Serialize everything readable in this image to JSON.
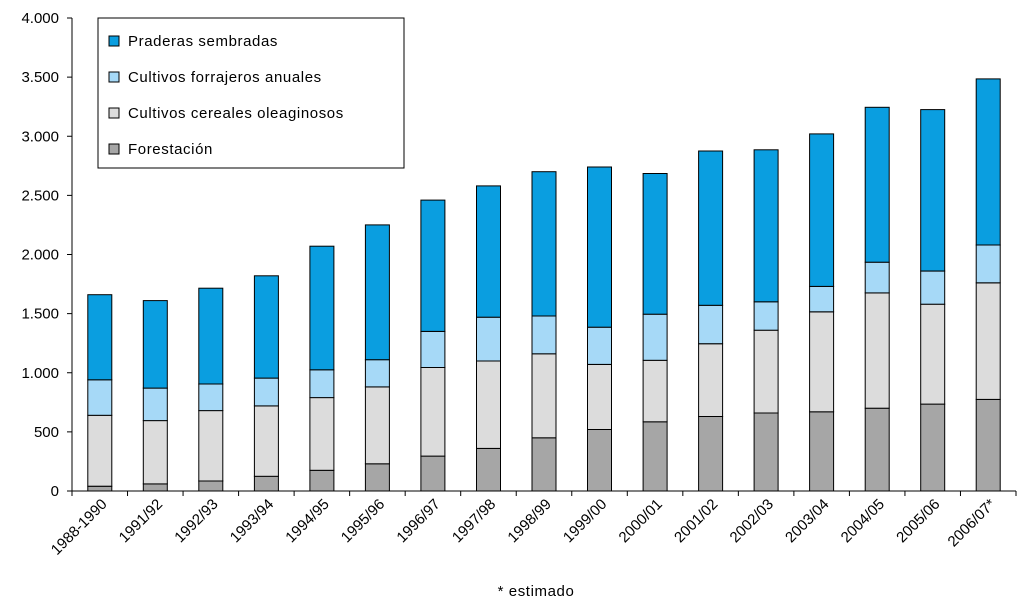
{
  "chart_data": {
    "type": "bar",
    "stacked": true,
    "title": "",
    "xlabel": "",
    "ylabel": "",
    "ylim": [
      0,
      4000
    ],
    "yticks": [
      0,
      500,
      1000,
      1500,
      2000,
      2500,
      3000,
      3500,
      4000
    ],
    "ytick_labels": [
      "0",
      "500",
      "1.000",
      "1.500",
      "2.000",
      "2.500",
      "3.000",
      "3.500",
      "4.000"
    ],
    "grid": false,
    "legend_position": "top-left",
    "categories": [
      "1988-1990",
      "1991/92",
      "1992/93",
      "1993/94",
      "1994/95",
      "1995/96",
      "1996/97",
      "1997/98",
      "1998/99",
      "1999/00",
      "2000/01",
      "2001/02",
      "2002/03",
      "2003/04",
      "2004/05",
      "2005/06",
      "2006/07*"
    ],
    "series": [
      {
        "name": "Forestación",
        "color": "#a6a6a6",
        "values": [
          40,
          60,
          85,
          125,
          175,
          230,
          295,
          360,
          450,
          520,
          585,
          630,
          660,
          670,
          700,
          735,
          775
        ]
      },
      {
        "name": "Cultivos cereales oleaginosos",
        "color": "#dcdcdc",
        "values": [
          600,
          535,
          595,
          595,
          615,
          650,
          750,
          740,
          710,
          550,
          520,
          615,
          700,
          845,
          975,
          845,
          985
        ]
      },
      {
        "name": "Cultivos forrajeros anuales",
        "color": "#a6d9f7",
        "values": [
          300,
          275,
          225,
          235,
          235,
          230,
          305,
          370,
          320,
          315,
          390,
          325,
          240,
          215,
          260,
          280,
          320
        ]
      },
      {
        "name": "Praderas sembradas",
        "color": "#0a9ee0",
        "values": [
          720,
          740,
          810,
          865,
          1045,
          1140,
          1110,
          1110,
          1220,
          1355,
          1190,
          1305,
          1285,
          1290,
          1310,
          1365,
          1405
        ]
      }
    ],
    "legend_order": [
      "Praderas sembradas",
      "Cultivos forrajeros anuales",
      "Cultivos cereales oleaginosos",
      "Forestación"
    ],
    "footnote": "* estimado"
  }
}
